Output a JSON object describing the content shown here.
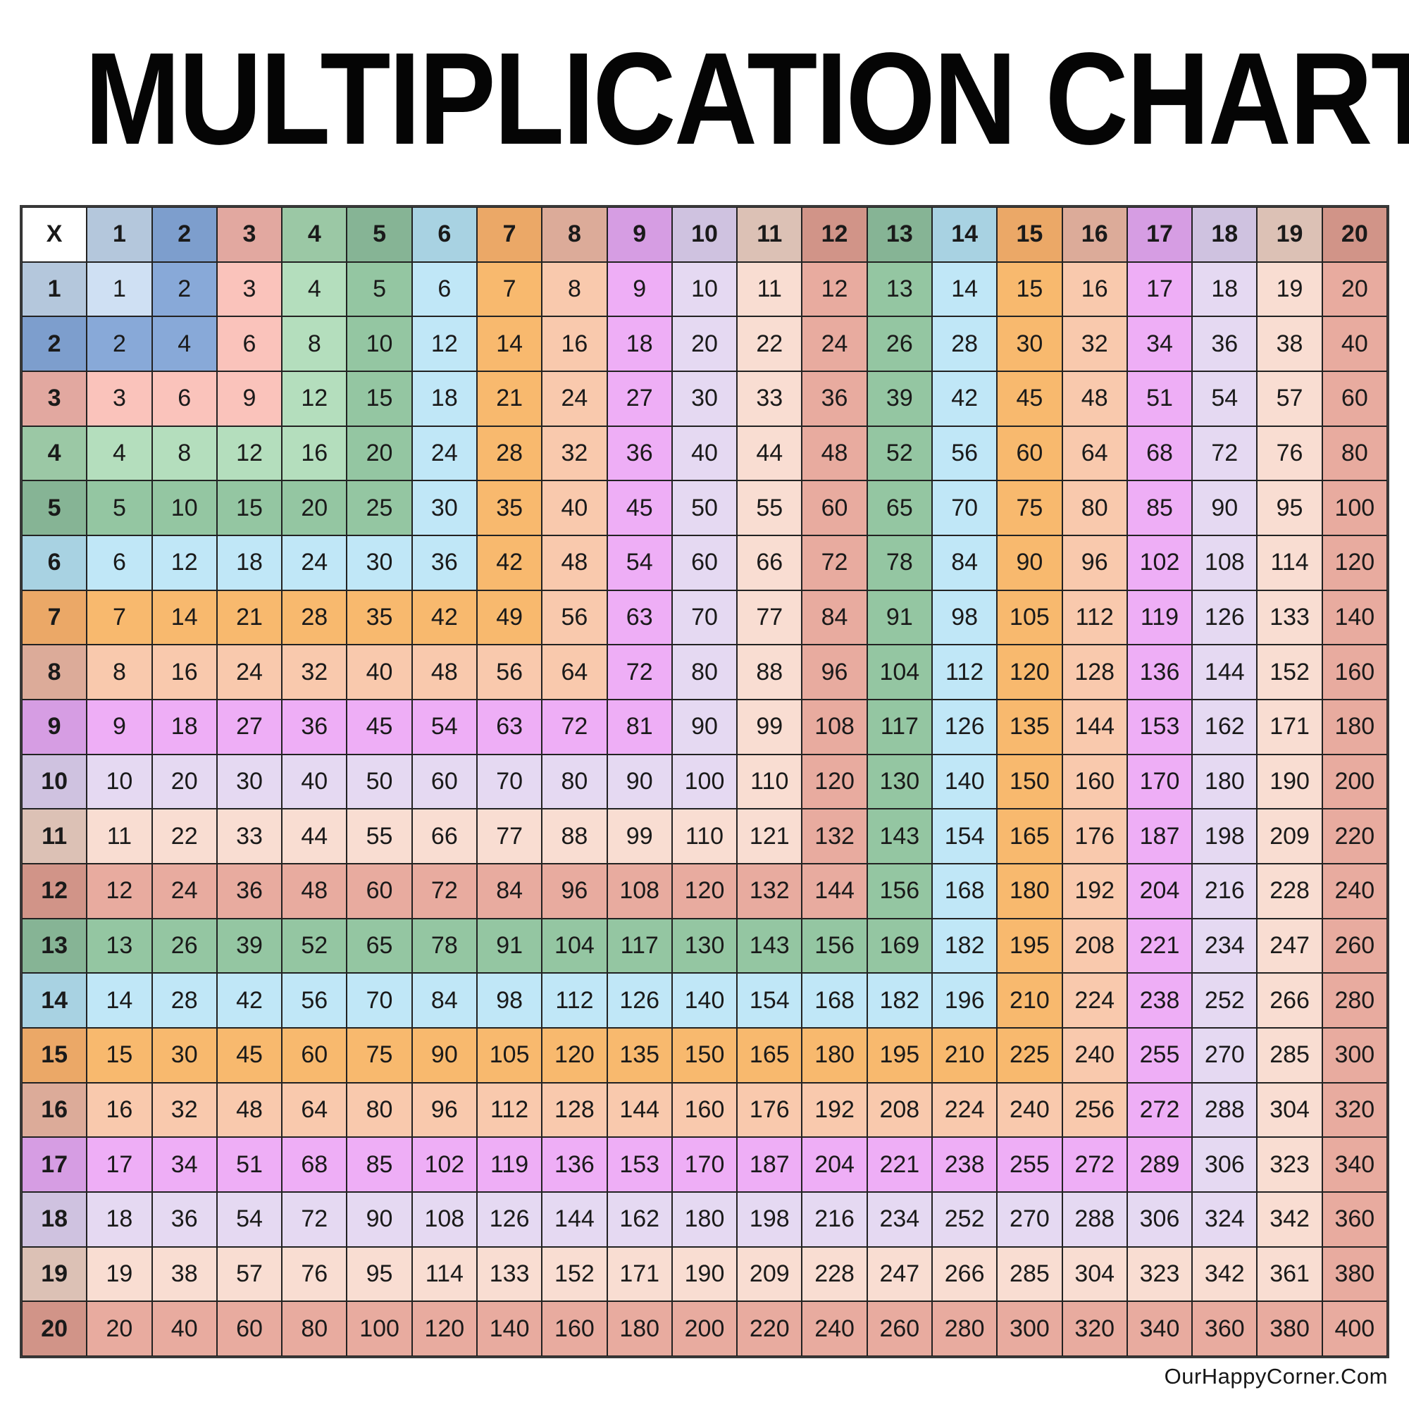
{
  "chart_data": {
    "type": "table",
    "title": "MULTIPLICATION CHART",
    "corner_label": "X",
    "column_headers": [
      1,
      2,
      3,
      4,
      5,
      6,
      7,
      8,
      9,
      10,
      11,
      12,
      13,
      14,
      15,
      16,
      17,
      18,
      19,
      20
    ],
    "row_headers": [
      1,
      2,
      3,
      4,
      5,
      6,
      7,
      8,
      9,
      10,
      11,
      12,
      13,
      14,
      15,
      16,
      17,
      18,
      19,
      20
    ],
    "rows": [
      [
        1,
        2,
        3,
        4,
        5,
        6,
        7,
        8,
        9,
        10,
        11,
        12,
        13,
        14,
        15,
        16,
        17,
        18,
        19,
        20
      ],
      [
        2,
        4,
        6,
        8,
        10,
        12,
        14,
        16,
        18,
        20,
        22,
        24,
        26,
        28,
        30,
        32,
        34,
        36,
        38,
        40
      ],
      [
        3,
        6,
        9,
        12,
        15,
        18,
        21,
        24,
        27,
        30,
        33,
        36,
        39,
        42,
        45,
        48,
        51,
        54,
        57,
        60
      ],
      [
        4,
        8,
        12,
        16,
        20,
        24,
        28,
        32,
        36,
        40,
        44,
        48,
        52,
        56,
        60,
        64,
        68,
        72,
        76,
        80
      ],
      [
        5,
        10,
        15,
        20,
        25,
        30,
        35,
        40,
        45,
        50,
        55,
        60,
        65,
        70,
        75,
        80,
        85,
        90,
        95,
        100
      ],
      [
        6,
        12,
        18,
        24,
        30,
        36,
        42,
        48,
        54,
        60,
        66,
        72,
        78,
        84,
        90,
        96,
        102,
        108,
        114,
        120
      ],
      [
        7,
        14,
        21,
        28,
        35,
        42,
        49,
        56,
        63,
        70,
        77,
        84,
        91,
        98,
        105,
        112,
        119,
        126,
        133,
        140
      ],
      [
        8,
        16,
        24,
        32,
        40,
        48,
        56,
        64,
        72,
        80,
        88,
        96,
        104,
        112,
        120,
        128,
        136,
        144,
        152,
        160
      ],
      [
        9,
        18,
        27,
        36,
        45,
        54,
        63,
        72,
        81,
        90,
        99,
        108,
        117,
        126,
        135,
        144,
        153,
        162,
        171,
        180
      ],
      [
        10,
        20,
        30,
        40,
        50,
        60,
        70,
        80,
        90,
        100,
        110,
        120,
        130,
        140,
        150,
        160,
        170,
        180,
        190,
        200
      ],
      [
        11,
        22,
        33,
        44,
        55,
        66,
        77,
        88,
        99,
        110,
        121,
        132,
        143,
        154,
        165,
        176,
        187,
        198,
        209,
        220
      ],
      [
        12,
        24,
        36,
        48,
        60,
        72,
        84,
        96,
        108,
        120,
        132,
        144,
        156,
        168,
        180,
        192,
        204,
        216,
        228,
        240
      ],
      [
        13,
        26,
        39,
        52,
        65,
        78,
        91,
        104,
        117,
        130,
        143,
        156,
        169,
        182,
        195,
        208,
        221,
        234,
        247,
        260
      ],
      [
        14,
        28,
        42,
        56,
        70,
        84,
        98,
        112,
        126,
        140,
        154,
        168,
        182,
        196,
        210,
        224,
        238,
        252,
        266,
        280
      ],
      [
        15,
        30,
        45,
        60,
        75,
        90,
        105,
        120,
        135,
        150,
        165,
        180,
        195,
        210,
        225,
        240,
        255,
        270,
        285,
        300
      ],
      [
        16,
        32,
        48,
        64,
        80,
        96,
        112,
        128,
        144,
        160,
        176,
        192,
        208,
        224,
        240,
        256,
        272,
        288,
        304,
        320
      ],
      [
        17,
        34,
        51,
        68,
        85,
        102,
        119,
        136,
        153,
        170,
        187,
        204,
        221,
        238,
        255,
        272,
        289,
        306,
        323,
        340
      ],
      [
        18,
        36,
        54,
        72,
        90,
        108,
        126,
        144,
        162,
        180,
        198,
        216,
        234,
        252,
        270,
        288,
        306,
        324,
        342,
        360
      ],
      [
        19,
        38,
        57,
        76,
        95,
        114,
        133,
        152,
        171,
        190,
        209,
        228,
        247,
        266,
        285,
        304,
        323,
        342,
        361,
        380
      ],
      [
        20,
        40,
        60,
        80,
        100,
        120,
        140,
        160,
        180,
        200,
        220,
        240,
        260,
        280,
        300,
        320,
        340,
        360,
        380,
        400
      ]
    ],
    "color_rule": "cell takes the shade of the larger factor; factors 13-20 reuse the colors of 5-12; headers use darker shades, body cells lighter shades"
  },
  "watermark": "OurHappyCorner.Com",
  "colors": {
    "title_text": "#050505",
    "cell_text": "#1a1a1a",
    "grid_line": "#222222",
    "outer_border": "#3a3a3a",
    "corner_bg": "#ffffff",
    "header_shades": [
      "#b4c7dc",
      "#7d9ecd",
      "#e2a8a0",
      "#9bc8a5",
      "#86b495",
      "#a8d2e2",
      "#eba867",
      "#dcab99",
      "#d69de3",
      "#cfc2e0",
      "#dcc1b5",
      "#d19488"
    ],
    "body_shades": [
      "#cfe0f3",
      "#88a9d8",
      "#fac3bb",
      "#b4debd",
      "#94c6a2",
      "#c0e7f7",
      "#f8b96e",
      "#f9c9ad",
      "#eeaef6",
      "#e5d9f2",
      "#f9ddd2",
      "#e8ab9f"
    ]
  }
}
